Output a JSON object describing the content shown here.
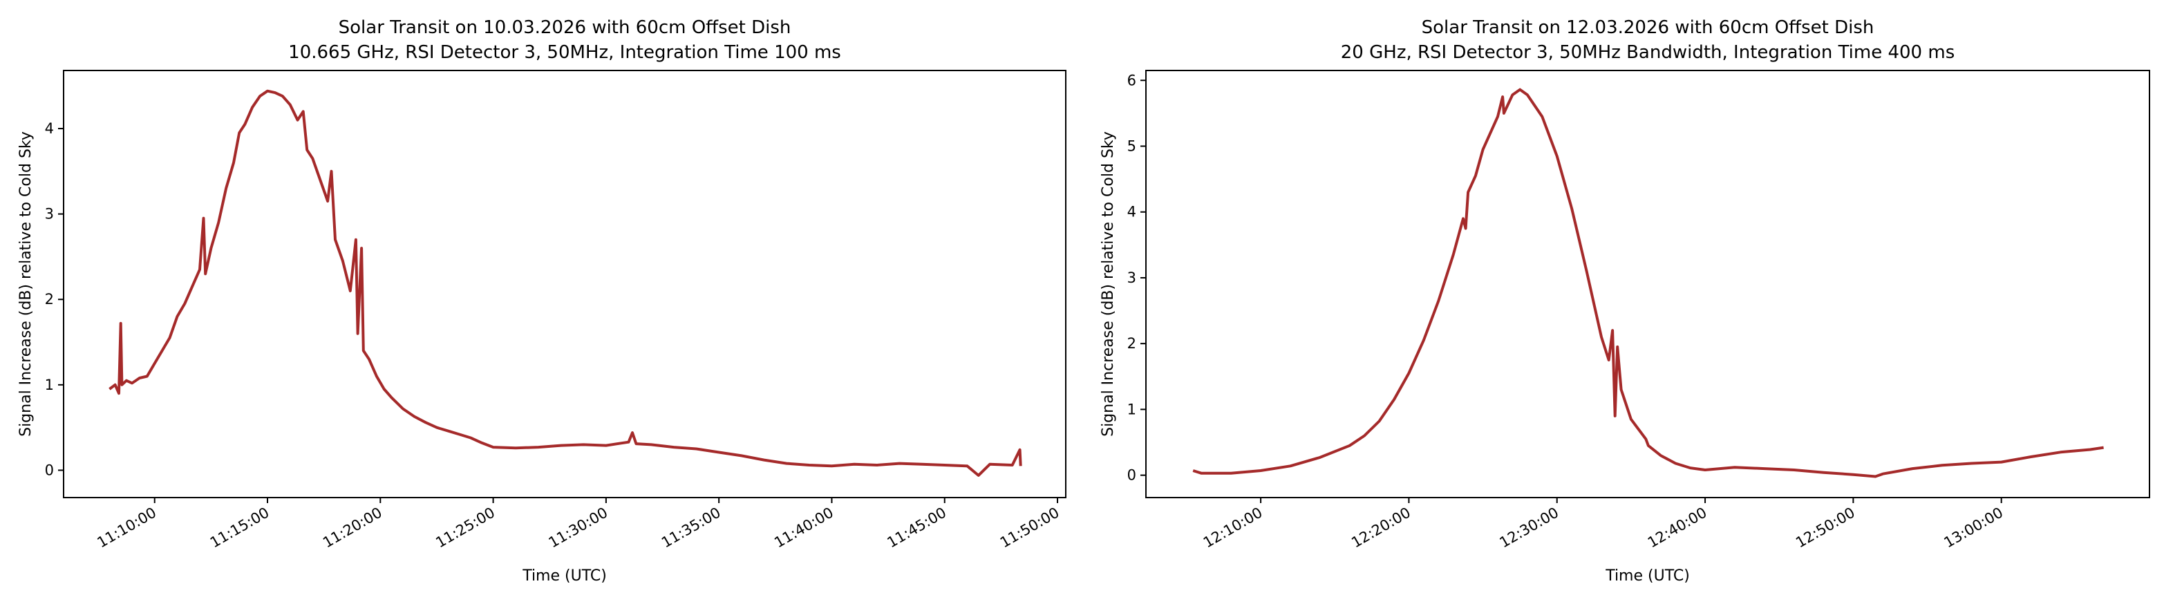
{
  "line_color": "#a52a2a",
  "chart_data": [
    {
      "type": "line",
      "title": "Solar Transit on 10.03.2026 with 60cm Offset Dish",
      "subtitle": "10.665 GHz, RSI Detector 3, 50MHz, Integration Time 100 ms",
      "xlabel": "Time (UTC)",
      "ylabel": "Signal Increase (dB) relative to Cold Sky",
      "xlim": [
        "11:05:58",
        "11:50:22"
      ],
      "ylim": [
        -0.32,
        4.68
      ],
      "xticks": [
        "11:10:00",
        "11:15:00",
        "11:20:00",
        "11:25:00",
        "11:30:00",
        "11:35:00",
        "11:40:00",
        "11:45:00",
        "11:50:00"
      ],
      "yticks": [
        0,
        1,
        2,
        3,
        4
      ],
      "grid": false,
      "series": [
        {
          "name": "signal",
          "points": [
            [
              "11:08:00",
              0.95
            ],
            [
              "11:08:15",
              1.0
            ],
            [
              "11:08:25",
              0.9
            ],
            [
              "11:08:30",
              1.72
            ],
            [
              "11:08:33",
              1.0
            ],
            [
              "11:08:45",
              1.05
            ],
            [
              "11:09:00",
              1.02
            ],
            [
              "11:09:20",
              1.08
            ],
            [
              "11:09:40",
              1.1
            ],
            [
              "11:10:00",
              1.25
            ],
            [
              "11:10:20",
              1.4
            ],
            [
              "11:10:40",
              1.55
            ],
            [
              "11:11:00",
              1.8
            ],
            [
              "11:11:20",
              1.95
            ],
            [
              "11:11:40",
              2.15
            ],
            [
              "11:12:00",
              2.35
            ],
            [
              "11:12:10",
              2.95
            ],
            [
              "11:12:15",
              2.3
            ],
            [
              "11:12:30",
              2.6
            ],
            [
              "11:12:50",
              2.9
            ],
            [
              "11:13:10",
              3.3
            ],
            [
              "11:13:30",
              3.6
            ],
            [
              "11:13:45",
              3.95
            ],
            [
              "11:14:00",
              4.05
            ],
            [
              "11:14:20",
              4.25
            ],
            [
              "11:14:40",
              4.38
            ],
            [
              "11:15:00",
              4.44
            ],
            [
              "11:15:20",
              4.42
            ],
            [
              "11:15:40",
              4.38
            ],
            [
              "11:16:00",
              4.28
            ],
            [
              "11:16:20",
              4.1
            ],
            [
              "11:16:35",
              4.2
            ],
            [
              "11:16:45",
              3.75
            ],
            [
              "11:17:00",
              3.65
            ],
            [
              "11:17:20",
              3.4
            ],
            [
              "11:17:40",
              3.15
            ],
            [
              "11:17:50",
              3.5
            ],
            [
              "11:18:00",
              2.7
            ],
            [
              "11:18:20",
              2.45
            ],
            [
              "11:18:40",
              2.1
            ],
            [
              "11:18:55",
              2.7
            ],
            [
              "11:19:00",
              1.6
            ],
            [
              "11:19:10",
              2.6
            ],
            [
              "11:19:15",
              1.4
            ],
            [
              "11:19:30",
              1.3
            ],
            [
              "11:19:50",
              1.1
            ],
            [
              "11:20:10",
              0.95
            ],
            [
              "11:20:30",
              0.85
            ],
            [
              "11:21:00",
              0.72
            ],
            [
              "11:21:30",
              0.63
            ],
            [
              "11:22:00",
              0.56
            ],
            [
              "11:22:30",
              0.5
            ],
            [
              "11:23:00",
              0.46
            ],
            [
              "11:23:30",
              0.42
            ],
            [
              "11:24:00",
              0.38
            ],
            [
              "11:24:30",
              0.32
            ],
            [
              "11:25:00",
              0.27
            ],
            [
              "11:26:00",
              0.26
            ],
            [
              "11:27:00",
              0.27
            ],
            [
              "11:28:00",
              0.29
            ],
            [
              "11:29:00",
              0.3
            ],
            [
              "11:30:00",
              0.29
            ],
            [
              "11:31:00",
              0.33
            ],
            [
              "11:31:10",
              0.44
            ],
            [
              "11:31:20",
              0.31
            ],
            [
              "11:32:00",
              0.3
            ],
            [
              "11:33:00",
              0.27
            ],
            [
              "11:34:00",
              0.25
            ],
            [
              "11:35:00",
              0.21
            ],
            [
              "11:36:00",
              0.17
            ],
            [
              "11:37:00",
              0.12
            ],
            [
              "11:38:00",
              0.08
            ],
            [
              "11:39:00",
              0.06
            ],
            [
              "11:40:00",
              0.05
            ],
            [
              "11:41:00",
              0.07
            ],
            [
              "11:42:00",
              0.06
            ],
            [
              "11:43:00",
              0.08
            ],
            [
              "11:44:00",
              0.07
            ],
            [
              "11:45:00",
              0.06
            ],
            [
              "11:46:00",
              0.05
            ],
            [
              "11:46:30",
              -0.06
            ],
            [
              "11:47:00",
              0.07
            ],
            [
              "11:48:00",
              0.06
            ],
            [
              "11:48:20",
              0.24
            ],
            [
              "11:48:22",
              0.05
            ]
          ]
        }
      ]
    },
    {
      "type": "line",
      "title": "Solar Transit on 12.03.2026 with 60cm Offset Dish",
      "subtitle": "20 GHz, RSI Detector 3, 50MHz Bandwidth, Integration Time 400 ms",
      "xlabel": "Time (UTC)",
      "ylabel": "Signal Increase (dB) relative to Cold Sky",
      "xlim": [
        "12:02:15",
        "13:10:00"
      ],
      "ylim": [
        -0.34,
        6.15
      ],
      "xticks": [
        "12:10:00",
        "12:20:00",
        "12:30:00",
        "12:40:00",
        "12:50:00",
        "13:00:00"
      ],
      "yticks": [
        0,
        1,
        2,
        3,
        4,
        5,
        6
      ],
      "grid": false,
      "series": [
        {
          "name": "signal",
          "points": [
            [
              "12:05:26",
              0.07
            ],
            [
              "12:06:00",
              0.03
            ],
            [
              "12:08:00",
              0.03
            ],
            [
              "12:10:00",
              0.07
            ],
            [
              "12:12:00",
              0.14
            ],
            [
              "12:14:00",
              0.27
            ],
            [
              "12:16:00",
              0.45
            ],
            [
              "12:17:00",
              0.6
            ],
            [
              "12:18:00",
              0.82
            ],
            [
              "12:19:00",
              1.15
            ],
            [
              "12:20:00",
              1.55
            ],
            [
              "12:21:00",
              2.05
            ],
            [
              "12:22:00",
              2.65
            ],
            [
              "12:23:00",
              3.35
            ],
            [
              "12:23:40",
              3.9
            ],
            [
              "12:23:50",
              3.75
            ],
            [
              "12:24:00",
              4.3
            ],
            [
              "12:24:30",
              4.55
            ],
            [
              "12:25:00",
              4.95
            ],
            [
              "12:26:00",
              5.45
            ],
            [
              "12:26:20",
              5.75
            ],
            [
              "12:26:25",
              5.5
            ],
            [
              "12:27:00",
              5.78
            ],
            [
              "12:27:30",
              5.86
            ],
            [
              "12:28:00",
              5.78
            ],
            [
              "12:29:00",
              5.45
            ],
            [
              "12:30:00",
              4.85
            ],
            [
              "12:31:00",
              4.05
            ],
            [
              "12:32:00",
              3.1
            ],
            [
              "12:33:00",
              2.1
            ],
            [
              "12:33:30",
              1.75
            ],
            [
              "12:33:45",
              2.2
            ],
            [
              "12:33:55",
              0.9
            ],
            [
              "12:34:05",
              1.95
            ],
            [
              "12:34:20",
              1.3
            ],
            [
              "12:35:00",
              0.85
            ],
            [
              "12:36:00",
              0.55
            ],
            [
              "12:36:10",
              0.45
            ],
            [
              "12:37:00",
              0.3
            ],
            [
              "12:38:00",
              0.18
            ],
            [
              "12:39:00",
              0.11
            ],
            [
              "12:40:00",
              0.08
            ],
            [
              "12:42:00",
              0.12
            ],
            [
              "12:44:00",
              0.1
            ],
            [
              "12:46:00",
              0.08
            ],
            [
              "12:48:00",
              0.04
            ],
            [
              "12:50:00",
              0.01
            ],
            [
              "12:51:30",
              -0.02
            ],
            [
              "12:52:00",
              0.02
            ],
            [
              "12:54:00",
              0.1
            ],
            [
              "12:56:00",
              0.15
            ],
            [
              "12:58:00",
              0.18
            ],
            [
              "13:00:00",
              0.2
            ],
            [
              "13:02:00",
              0.28
            ],
            [
              "13:04:00",
              0.35
            ],
            [
              "13:06:00",
              0.39
            ],
            [
              "13:06:54",
              0.42
            ]
          ]
        }
      ]
    }
  ]
}
